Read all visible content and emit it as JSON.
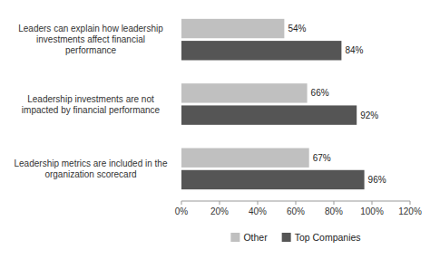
{
  "chart_data": {
    "type": "bar",
    "orientation": "horizontal",
    "categories": [
      "Leaders can explain how leadership\ninvestments affect financial\nperformance",
      "Leadership investments are not\nimpacted by financial performance",
      "Leadership metrics are included in the\norganization scorecard"
    ],
    "series": [
      {
        "name": "Other",
        "color": "#c0c0c0",
        "values": [
          0.54,
          0.66,
          0.67
        ],
        "value_labels": [
          "54%",
          "66%",
          "67%"
        ]
      },
      {
        "name": "Top Companies",
        "color": "#555555",
        "values": [
          0.84,
          0.92,
          0.96
        ],
        "value_labels": [
          "84%",
          "92%",
          "96%"
        ]
      }
    ],
    "xlim": [
      0,
      1.2
    ],
    "xticks": [
      {
        "value": 0,
        "label": "0%"
      },
      {
        "value": 0.2,
        "label": "20%"
      },
      {
        "value": 0.4,
        "label": "40%"
      },
      {
        "value": 0.6,
        "label": "60%"
      },
      {
        "value": 0.8,
        "label": "80%"
      },
      {
        "value": 1.0,
        "label": "100%"
      },
      {
        "value": 1.2,
        "label": "120%"
      }
    ],
    "data_labels": true,
    "legend": "bottom",
    "grid": false
  }
}
